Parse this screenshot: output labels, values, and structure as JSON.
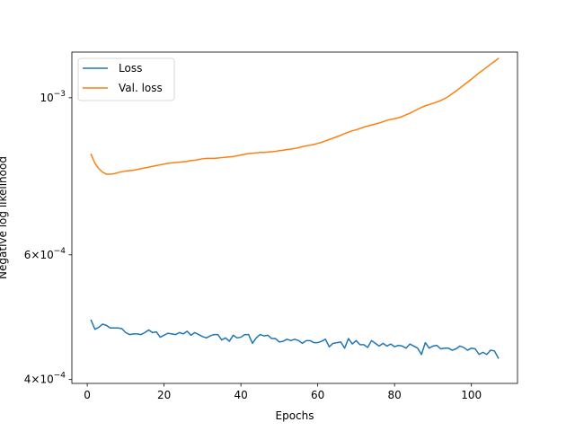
{
  "chart_data": {
    "type": "line",
    "title": "",
    "xlabel": "Epochs",
    "ylabel": "Negative log likelihood",
    "xscale": "linear",
    "yscale": "log",
    "xlim": [
      -4,
      112
    ],
    "ylim": [
      0.000395,
      0.00116
    ],
    "grid": false,
    "legend_position": "top-left",
    "x_ticks": [
      {
        "value": 0,
        "label": "0"
      },
      {
        "value": 20,
        "label": "20"
      },
      {
        "value": 40,
        "label": "40"
      },
      {
        "value": 60,
        "label": "60"
      },
      {
        "value": 80,
        "label": "80"
      },
      {
        "value": 100,
        "label": "100"
      }
    ],
    "y_ticks": [
      {
        "value": 0.0004,
        "mantissa": "4",
        "exponent": "−4"
      },
      {
        "value": 0.0006,
        "mantissa": "6",
        "exponent": "−4"
      },
      {
        "value": 0.001,
        "mantissa": "",
        "exponent": "−3"
      }
    ],
    "series": [
      {
        "name": "Loss",
        "color": "#1f77b4",
        "x": [
          1,
          2,
          3,
          4,
          5,
          6,
          7,
          8,
          9,
          10,
          11,
          12,
          13,
          14,
          15,
          16,
          17,
          18,
          19,
          20,
          21,
          22,
          23,
          24,
          25,
          26,
          27,
          28,
          29,
          30,
          31,
          32,
          33,
          34,
          35,
          36,
          37,
          38,
          39,
          40,
          41,
          42,
          43,
          44,
          45,
          46,
          47,
          48,
          49,
          50,
          51,
          52,
          53,
          54,
          55,
          56,
          57,
          58,
          59,
          60,
          61,
          62,
          63,
          64,
          65,
          66,
          67,
          68,
          69,
          70,
          71,
          72,
          73,
          74,
          75,
          76,
          77,
          78,
          79,
          80,
          81,
          82,
          83,
          84,
          85,
          86,
          87,
          88,
          89,
          90,
          91,
          92,
          93,
          94,
          95,
          96,
          97,
          98,
          99,
          100,
          101,
          102,
          103,
          104,
          105,
          106,
          107
        ],
        "values": [
          0.000485,
          0.000471,
          0.000474,
          0.000479,
          0.000477,
          0.000473,
          0.000473,
          0.000473,
          0.000472,
          0.000466,
          0.000463,
          0.000464,
          0.000464,
          0.000463,
          0.000466,
          0.00047,
          0.000466,
          0.000467,
          0.000459,
          0.000462,
          0.000465,
          0.000464,
          0.000463,
          0.000466,
          0.000464,
          0.000468,
          0.000462,
          0.000466,
          0.000463,
          0.00046,
          0.000458,
          0.000461,
          0.000463,
          0.000463,
          0.000455,
          0.000458,
          0.000453,
          0.000462,
          0.000458,
          0.000459,
          0.000463,
          0.000463,
          0.00045,
          0.000458,
          0.000463,
          0.000461,
          0.000462,
          0.000457,
          0.000457,
          0.000452,
          0.000453,
          0.000456,
          0.000454,
          0.000456,
          0.000454,
          0.00045,
          0.000454,
          0.000454,
          0.000451,
          0.000451,
          0.000453,
          0.000456,
          0.000445,
          0.00045,
          0.000451,
          0.000452,
          0.000443,
          0.000457,
          0.000449,
          0.000454,
          0.000448,
          0.000448,
          0.000444,
          0.000454,
          0.00045,
          0.000446,
          0.00045,
          0.000446,
          0.000449,
          0.000445,
          0.000447,
          0.000446,
          0.000443,
          0.000449,
          0.000446,
          0.000443,
          0.000434,
          0.000451,
          0.000443,
          0.000446,
          0.000447,
          0.000442,
          0.000443,
          0.000443,
          0.00044,
          0.000442,
          0.000446,
          0.000444,
          0.00044,
          0.000443,
          0.000442,
          0.000434,
          0.000437,
          0.000434,
          0.00044,
          0.000439,
          0.000429
        ]
      },
      {
        "name": "Val. loss",
        "color": "#ff7f0e",
        "x": [
          1,
          2,
          3,
          4,
          5,
          6,
          7,
          8,
          9,
          10,
          11,
          12,
          13,
          14,
          15,
          16,
          17,
          18,
          19,
          20,
          21,
          22,
          23,
          24,
          25,
          26,
          27,
          28,
          29,
          30,
          31,
          32,
          33,
          34,
          35,
          36,
          37,
          38,
          39,
          40,
          41,
          42,
          43,
          44,
          45,
          46,
          47,
          48,
          49,
          50,
          51,
          52,
          53,
          54,
          55,
          56,
          57,
          58,
          59,
          60,
          61,
          62,
          63,
          64,
          65,
          66,
          67,
          68,
          69,
          70,
          71,
          72,
          73,
          74,
          75,
          76,
          77,
          78,
          79,
          80,
          81,
          82,
          83,
          84,
          85,
          86,
          87,
          88,
          89,
          90,
          91,
          92,
          93,
          94,
          95,
          96,
          97,
          98,
          99,
          100,
          101,
          102,
          103,
          104,
          105,
          106,
          107
        ],
        "values": [
          0.000832,
          0.000808,
          0.000794,
          0.000785,
          0.00078,
          0.00078,
          0.000781,
          0.000784,
          0.000786,
          0.000788,
          0.000789,
          0.00079,
          0.000792,
          0.000794,
          0.000796,
          0.000798,
          0.0008,
          0.000802,
          0.000804,
          0.000806,
          0.000808,
          0.000809,
          0.00081,
          0.000811,
          0.000812,
          0.000813,
          0.000815,
          0.000816,
          0.000818,
          0.00082,
          0.000821,
          0.000821,
          0.000821,
          0.000822,
          0.000823,
          0.000824,
          0.000825,
          0.000826,
          0.000828,
          0.00083,
          0.000832,
          0.000834,
          0.000835,
          0.000836,
          0.000837,
          0.000837,
          0.000838,
          0.000839,
          0.00084,
          0.000842,
          0.000843,
          0.000845,
          0.000846,
          0.000848,
          0.00085,
          0.000853,
          0.000855,
          0.000857,
          0.000859,
          0.000862,
          0.000865,
          0.000869,
          0.000873,
          0.000877,
          0.000881,
          0.000885,
          0.00089,
          0.000894,
          0.000898,
          0.000901,
          0.000905,
          0.000909,
          0.000912,
          0.000915,
          0.000918,
          0.000921,
          0.000925,
          0.000929,
          0.000932,
          0.000934,
          0.000937,
          0.000941,
          0.000946,
          0.000951,
          0.000957,
          0.000963,
          0.000969,
          0.000974,
          0.000978,
          0.000982,
          0.000986,
          0.000991,
          0.000997,
          0.001004,
          0.001013,
          0.001022,
          0.001032,
          0.001042,
          0.001052,
          0.001062,
          0.001073,
          0.001084,
          0.001094,
          0.001104,
          0.001115,
          0.001125,
          0.001136
        ]
      }
    ]
  }
}
